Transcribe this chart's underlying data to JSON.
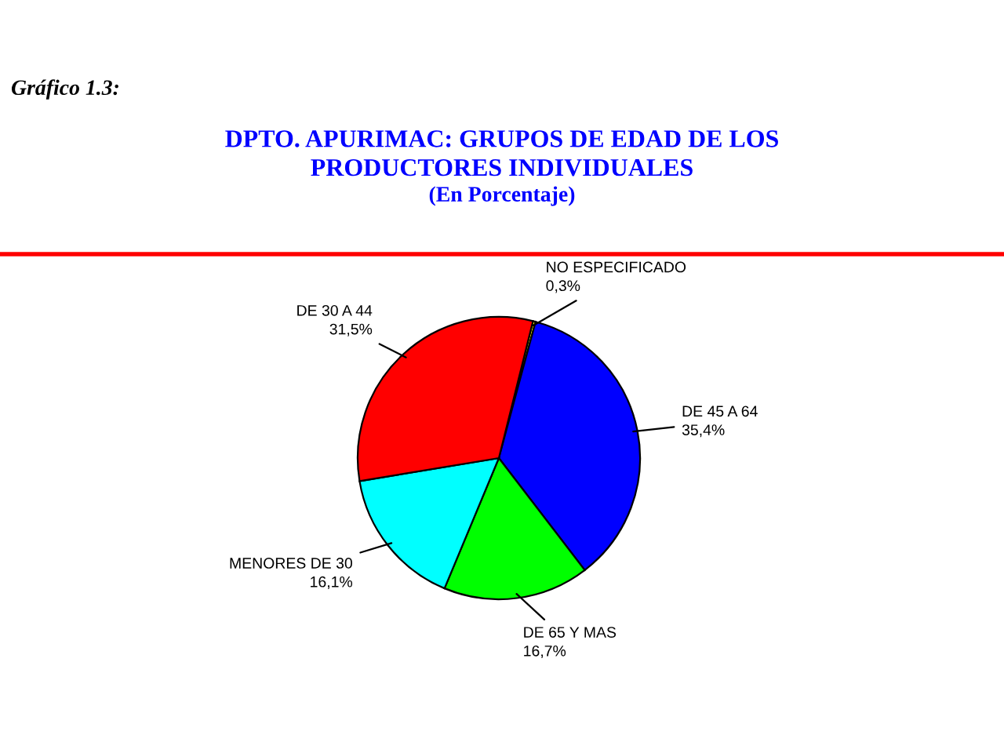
{
  "chart_data": {
    "type": "pie",
    "title": "DPTO. APURIMAC: GRUPOS DE EDAD DE LOS\nPRODUCTORES INDIVIDUALES",
    "subtitle": "(En Porcentaje)",
    "annotations": [
      "Gráfico 1.3:"
    ],
    "categories": [
      "NO ESPECIFICADO",
      "DE 45 A 64",
      "DE 65 Y MAS",
      "MENORES DE 30",
      "DE 30 A 44"
    ],
    "values": [
      0.3,
      35.4,
      16.7,
      16.1,
      31.5
    ],
    "value_labels": [
      "0,3%",
      "35,4%",
      "16,7%",
      "16,1%",
      "31,5%"
    ],
    "colors": [
      "#ffff00",
      "#0000ff",
      "#00ff00",
      "#00ffff",
      "#ff0000"
    ]
  }
}
